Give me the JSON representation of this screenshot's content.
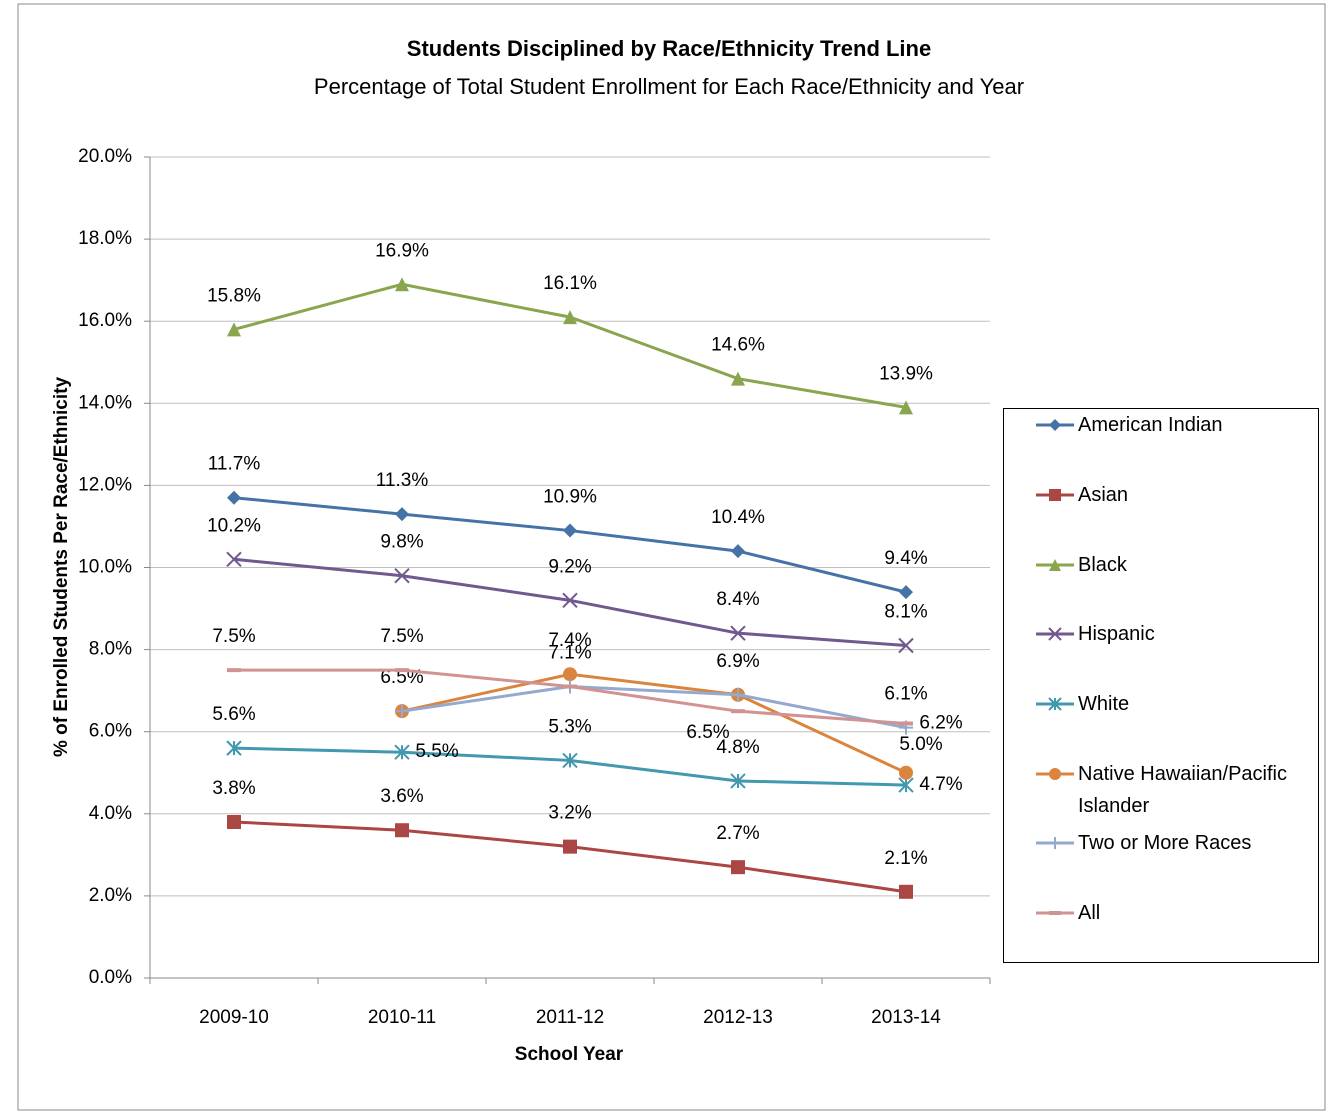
{
  "chart_data": {
    "type": "line",
    "title": "Students Disciplined by Race/Ethnicity Trend Line",
    "subtitle": "Percentage of Total Student Enrollment for Each Race/Ethnicity and Year",
    "x_label": "School Year",
    "y_label": "% of Enrolled Students Per Race/Ethnicity",
    "categories": [
      "2009-10",
      "2010-11",
      "2011-12",
      "2012-13",
      "2013-14"
    ],
    "ylim": [
      0,
      20
    ],
    "yticks": [
      {
        "value": 0,
        "label": "0.0%"
      },
      {
        "value": 2,
        "label": "2.0%"
      },
      {
        "value": 4,
        "label": "4.0%"
      },
      {
        "value": 6,
        "label": "6.0%"
      },
      {
        "value": 8,
        "label": "8.0%"
      },
      {
        "value": 10,
        "label": "10.0%"
      },
      {
        "value": 12,
        "label": "12.0%"
      },
      {
        "value": 14,
        "label": "14.0%"
      },
      {
        "value": 16,
        "label": "16.0%"
      },
      {
        "value": 18,
        "label": "18.0%"
      },
      {
        "value": 20,
        "label": "20.0%"
      }
    ],
    "grid": true,
    "legend": "right",
    "series": [
      {
        "name": "American Indian",
        "color": "#4572a7",
        "marker": "diamond",
        "values": [
          11.7,
          11.3,
          10.9,
          10.4,
          9.4
        ],
        "value_labels": [
          "11.7%",
          "11.3%",
          "10.9%",
          "10.4%",
          "9.4%"
        ]
      },
      {
        "name": "Asian",
        "color": "#aa4643",
        "marker": "square",
        "values": [
          3.8,
          3.6,
          3.2,
          2.7,
          2.1
        ],
        "value_labels": [
          "3.8%",
          "3.6%",
          "3.2%",
          "2.7%",
          "2.1%"
        ]
      },
      {
        "name": "Black",
        "color": "#89a54e",
        "marker": "triangle",
        "values": [
          15.8,
          16.9,
          16.1,
          14.6,
          13.9
        ],
        "value_labels": [
          "15.8%",
          "16.9%",
          "16.1%",
          "14.6%",
          "13.9%"
        ]
      },
      {
        "name": "Hispanic",
        "color": "#71588f",
        "marker": "x",
        "values": [
          10.2,
          9.8,
          9.2,
          8.4,
          8.1
        ],
        "value_labels": [
          "10.2%",
          "9.8%",
          "9.2%",
          "8.4%",
          "8.1%"
        ]
      },
      {
        "name": "White",
        "color": "#4198af",
        "marker": "star",
        "values": [
          5.6,
          5.5,
          5.3,
          4.8,
          4.7
        ],
        "value_labels": [
          "5.6%",
          "5.5%",
          "5.3%",
          "4.8%",
          "4.7%"
        ]
      },
      {
        "name": "Native Hawaiian/Pacific Islander",
        "color": "#db843d",
        "marker": "circle",
        "values": [
          null,
          6.5,
          7.4,
          6.9,
          5.0
        ],
        "value_labels": [
          null,
          "6.5%",
          "7.4%",
          "6.9%",
          "5.0%"
        ]
      },
      {
        "name": "Two or More Races",
        "color": "#93a9cf",
        "marker": "plus",
        "values": [
          null,
          6.5,
          7.1,
          6.9,
          6.1
        ],
        "value_labels": [
          null,
          null,
          "7.1%",
          null,
          "6.1%"
        ]
      },
      {
        "name": "All",
        "color": "#d09392",
        "marker": "dash",
        "values": [
          7.5,
          7.5,
          7.1,
          6.5,
          6.2
        ],
        "value_labels": [
          "7.5%",
          "7.5%",
          null,
          "6.5%",
          "6.2%"
        ]
      }
    ]
  }
}
